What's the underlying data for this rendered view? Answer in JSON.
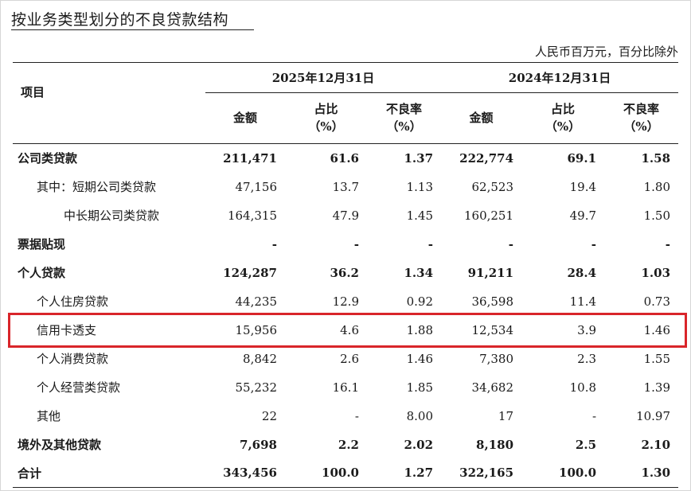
{
  "title": "按业务类型划分的不良贷款结构",
  "unit_note": "人民币百万元，百分比除外",
  "header": {
    "item_label": "项目",
    "year_a": "2025年12月31日",
    "year_b": "2024年12月31日",
    "col_amount": "金额",
    "col_share": "占比\n（%）",
    "col_npl": "不良率\n（%）"
  },
  "rows": [
    {
      "label": "公司类贷款",
      "bold": true,
      "indent": 0,
      "a_amt": "211,471",
      "a_share": "61.6",
      "a_npl": "1.37",
      "b_amt": "222,774",
      "b_share": "69.1",
      "b_npl": "1.58"
    },
    {
      "label": "其中：短期公司类贷款",
      "bold": false,
      "indent": 1,
      "a_amt": "47,156",
      "a_share": "13.7",
      "a_npl": "1.13",
      "b_amt": "62,523",
      "b_share": "19.4",
      "b_npl": "1.80"
    },
    {
      "label": "中长期公司类贷款",
      "bold": false,
      "indent": 2,
      "a_amt": "164,315",
      "a_share": "47.9",
      "a_npl": "1.45",
      "b_amt": "160,251",
      "b_share": "49.7",
      "b_npl": "1.50"
    },
    {
      "label": "票据贴现",
      "bold": true,
      "indent": 0,
      "a_amt": "-",
      "a_share": "-",
      "a_npl": "-",
      "b_amt": "-",
      "b_share": "-",
      "b_npl": "-"
    },
    {
      "label": "个人贷款",
      "bold": true,
      "indent": 0,
      "a_amt": "124,287",
      "a_share": "36.2",
      "a_npl": "1.34",
      "b_amt": "91,211",
      "b_share": "28.4",
      "b_npl": "1.03"
    },
    {
      "label": "个人住房贷款",
      "bold": false,
      "indent": 1,
      "a_amt": "44,235",
      "a_share": "12.9",
      "a_npl": "0.92",
      "b_amt": "36,598",
      "b_share": "11.4",
      "b_npl": "0.73"
    },
    {
      "label": "信用卡透支",
      "bold": false,
      "indent": 1,
      "a_amt": "15,956",
      "a_share": "4.6",
      "a_npl": "1.88",
      "b_amt": "12,534",
      "b_share": "3.9",
      "b_npl": "1.46"
    },
    {
      "label": "个人消费贷款",
      "bold": false,
      "indent": 1,
      "a_amt": "8,842",
      "a_share": "2.6",
      "a_npl": "1.46",
      "b_amt": "7,380",
      "b_share": "2.3",
      "b_npl": "1.55"
    },
    {
      "label": "个人经营类贷款",
      "bold": false,
      "indent": 1,
      "a_amt": "55,232",
      "a_share": "16.1",
      "a_npl": "1.85",
      "b_amt": "34,682",
      "b_share": "10.8",
      "b_npl": "1.39"
    },
    {
      "label": "其他",
      "bold": false,
      "indent": 1,
      "a_amt": "22",
      "a_share": "-",
      "a_npl": "8.00",
      "b_amt": "17",
      "b_share": "-",
      "b_npl": "10.97"
    },
    {
      "label": "境外及其他贷款",
      "bold": true,
      "indent": 0,
      "a_amt": "7,698",
      "a_share": "2.2",
      "a_npl": "2.02",
      "b_amt": "8,180",
      "b_share": "2.5",
      "b_npl": "2.10"
    },
    {
      "label": "合计",
      "bold": true,
      "indent": 0,
      "a_amt": "343,456",
      "a_share": "100.0",
      "a_npl": "1.27",
      "b_amt": "322,165",
      "b_share": "100.0",
      "b_npl": "1.30"
    }
  ],
  "highlight_row": 6,
  "colors": {
    "highlight": "#d9252a",
    "text": "#1a1a1a",
    "rule": "#222222"
  }
}
